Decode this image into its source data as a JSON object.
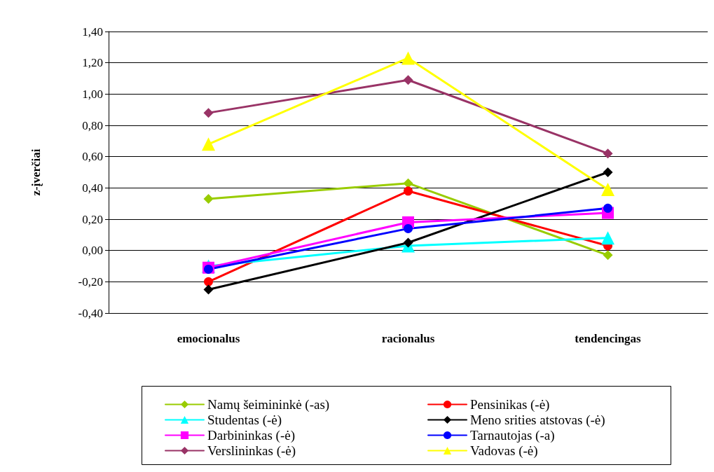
{
  "chart_data": {
    "type": "line",
    "ylabel": "z-įverčiai",
    "categories": [
      "emocionalus",
      "racionalus",
      "tendencingas"
    ],
    "ylim": [
      -0.4,
      1.4
    ],
    "yticks": [
      {
        "value": -0.4,
        "label": "-0,40"
      },
      {
        "value": -0.2,
        "label": "-0,20"
      },
      {
        "value": 0,
        "label": "0,00"
      },
      {
        "value": 0.2,
        "label": "0,20"
      },
      {
        "value": 0.4,
        "label": "0,40"
      },
      {
        "value": 0.6,
        "label": "0,60"
      },
      {
        "value": 0.8,
        "label": "0,80"
      },
      {
        "value": 1.0,
        "label": "1,00"
      },
      {
        "value": 1.2,
        "label": "1,20"
      },
      {
        "value": 1.4,
        "label": "1,40"
      }
    ],
    "grid": "y",
    "legend": "bottom",
    "line_style": "solid",
    "series": [
      {
        "name": "Namų šeimininkė (-as)",
        "color": "#99cc00",
        "marker": "diamond",
        "values": [
          0.33,
          0.43,
          -0.03
        ]
      },
      {
        "name": "Pensinikas (-ė)",
        "color": "#ff0000",
        "marker": "circle",
        "values": [
          -0.2,
          0.38,
          0.03
        ]
      },
      {
        "name": "Studentas (-ė)",
        "color": "#00ffff",
        "marker": "triangle",
        "values": [
          -0.1,
          0.03,
          0.08
        ]
      },
      {
        "name": "Meno srities atstovas (-ė)",
        "color": "#000000",
        "marker": "diamond",
        "values": [
          -0.25,
          0.05,
          0.5
        ]
      },
      {
        "name": "Darbininkas (-ė)",
        "color": "#ff00ff",
        "marker": "square",
        "values": [
          -0.11,
          0.18,
          0.24
        ]
      },
      {
        "name": "Tarnautojas (-a)",
        "color": "#0000ff",
        "marker": "circle",
        "values": [
          -0.12,
          0.14,
          0.27
        ]
      },
      {
        "name": "Verslininkas (-ė)",
        "color": "#993366",
        "marker": "diamond",
        "values": [
          0.88,
          1.09,
          0.62
        ]
      },
      {
        "name": "Vadovas (-ė)",
        "color": "#ffff00",
        "marker": "triangle",
        "values": [
          0.68,
          1.23,
          0.39
        ]
      }
    ]
  }
}
